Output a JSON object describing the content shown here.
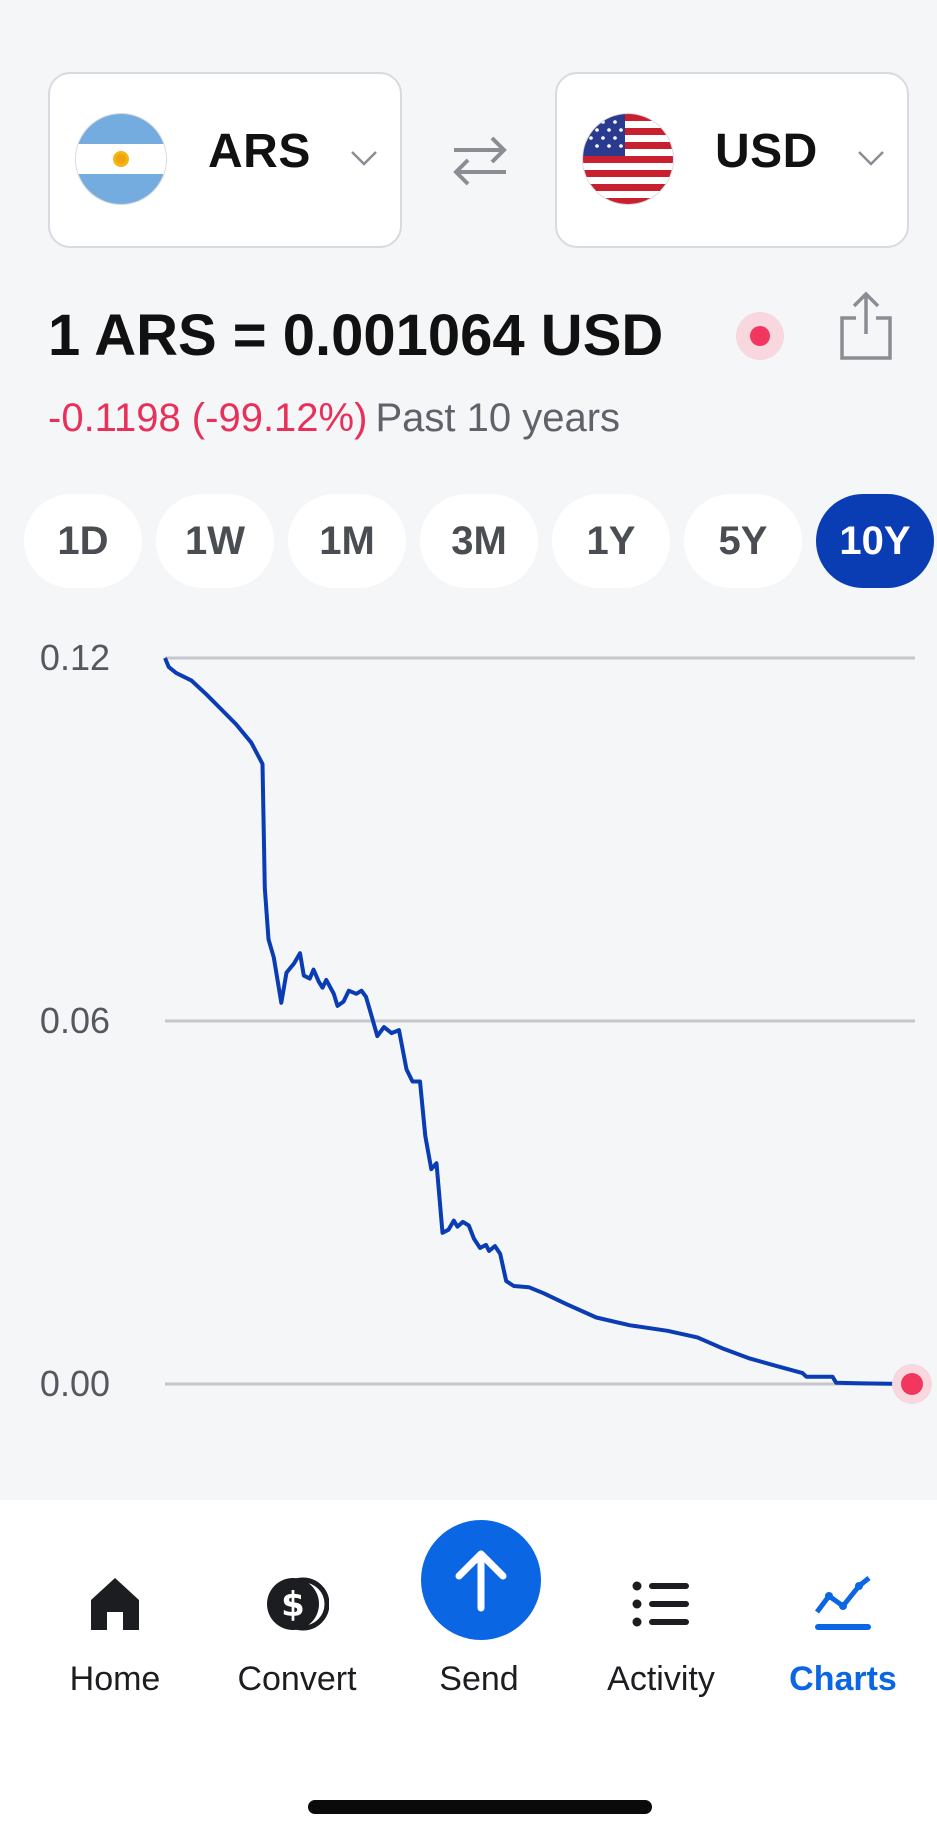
{
  "currency_selector": {
    "from": {
      "code": "ARS",
      "flag": "argentina-flag"
    },
    "to": {
      "code": "USD",
      "flag": "us-flag"
    },
    "swap_icon": "swap-arrows-icon"
  },
  "rate": {
    "text": "1 ARS = 0.001064 USD",
    "change": "-0.1198 (-99.12%)",
    "period": "Past 10 years"
  },
  "range_tabs": [
    {
      "label": "1D",
      "active": false
    },
    {
      "label": "1W",
      "active": false
    },
    {
      "label": "1M",
      "active": false
    },
    {
      "label": "3M",
      "active": false
    },
    {
      "label": "1Y",
      "active": false
    },
    {
      "label": "5Y",
      "active": false
    },
    {
      "label": "10Y",
      "active": true
    }
  ],
  "chart_data": {
    "type": "line",
    "y_ticks": [
      "0.12",
      "0.06",
      "0.00"
    ],
    "ylim": [
      0,
      0.12
    ],
    "xlim": [
      0,
      10
    ],
    "grid": true,
    "colors": {
      "line": "#0a3db3",
      "last_point": "#f2365f",
      "grid": "#c5c7cb"
    },
    "points": [
      [
        0.0,
        0.12
      ],
      [
        0.05,
        0.1185
      ],
      [
        0.15,
        0.1175
      ],
      [
        0.35,
        0.1163
      ],
      [
        0.55,
        0.114
      ],
      [
        0.75,
        0.1115
      ],
      [
        0.95,
        0.109
      ],
      [
        1.15,
        0.106
      ],
      [
        1.3,
        0.1025
      ],
      [
        1.33,
        0.082
      ],
      [
        1.38,
        0.0735
      ],
      [
        1.45,
        0.0705
      ],
      [
        1.55,
        0.063
      ],
      [
        1.62,
        0.068
      ],
      [
        1.72,
        0.0695
      ],
      [
        1.8,
        0.0712
      ],
      [
        1.85,
        0.0675
      ],
      [
        1.93,
        0.067
      ],
      [
        1.98,
        0.0685
      ],
      [
        2.05,
        0.0665
      ],
      [
        2.1,
        0.0655
      ],
      [
        2.15,
        0.0668
      ],
      [
        2.25,
        0.0645
      ],
      [
        2.3,
        0.0625
      ],
      [
        2.38,
        0.0632
      ],
      [
        2.45,
        0.065
      ],
      [
        2.55,
        0.0645
      ],
      [
        2.62,
        0.065
      ],
      [
        2.68,
        0.064
      ],
      [
        2.75,
        0.061
      ],
      [
        2.83,
        0.0575
      ],
      [
        2.92,
        0.059
      ],
      [
        3.02,
        0.058
      ],
      [
        3.12,
        0.0585
      ],
      [
        3.22,
        0.052
      ],
      [
        3.3,
        0.05
      ],
      [
        3.4,
        0.05
      ],
      [
        3.47,
        0.041
      ],
      [
        3.55,
        0.0355
      ],
      [
        3.62,
        0.0365
      ],
      [
        3.7,
        0.025
      ],
      [
        3.78,
        0.0255
      ],
      [
        3.85,
        0.027
      ],
      [
        3.9,
        0.026
      ],
      [
        3.97,
        0.0268
      ],
      [
        4.05,
        0.0262
      ],
      [
        4.12,
        0.024
      ],
      [
        4.2,
        0.0225
      ],
      [
        4.28,
        0.023
      ],
      [
        4.32,
        0.022
      ],
      [
        4.4,
        0.0228
      ],
      [
        4.47,
        0.0215
      ],
      [
        4.55,
        0.017
      ],
      [
        4.65,
        0.0162
      ],
      [
        4.85,
        0.016
      ],
      [
        5.05,
        0.015
      ],
      [
        5.35,
        0.0132
      ],
      [
        5.75,
        0.011
      ],
      [
        6.2,
        0.0097
      ],
      [
        6.7,
        0.0088
      ],
      [
        7.1,
        0.0077
      ],
      [
        7.45,
        0.0058
      ],
      [
        7.8,
        0.0042
      ],
      [
        8.15,
        0.003
      ],
      [
        8.5,
        0.0018
      ],
      [
        8.55,
        0.0012
      ],
      [
        8.9,
        0.0012
      ],
      [
        8.95,
        0.0002
      ],
      [
        9.3,
        0.0001
      ],
      [
        10.0,
        0.0
      ]
    ]
  },
  "nav": [
    {
      "label": "Home",
      "icon": "home-icon",
      "active": false
    },
    {
      "label": "Convert",
      "icon": "convert-coins-icon",
      "active": false
    },
    {
      "label": "Send",
      "icon": "send-arrow-icon",
      "active": false
    },
    {
      "label": "Activity",
      "icon": "activity-list-icon",
      "active": false
    },
    {
      "label": "Charts",
      "icon": "charts-icon",
      "active": true
    }
  ]
}
